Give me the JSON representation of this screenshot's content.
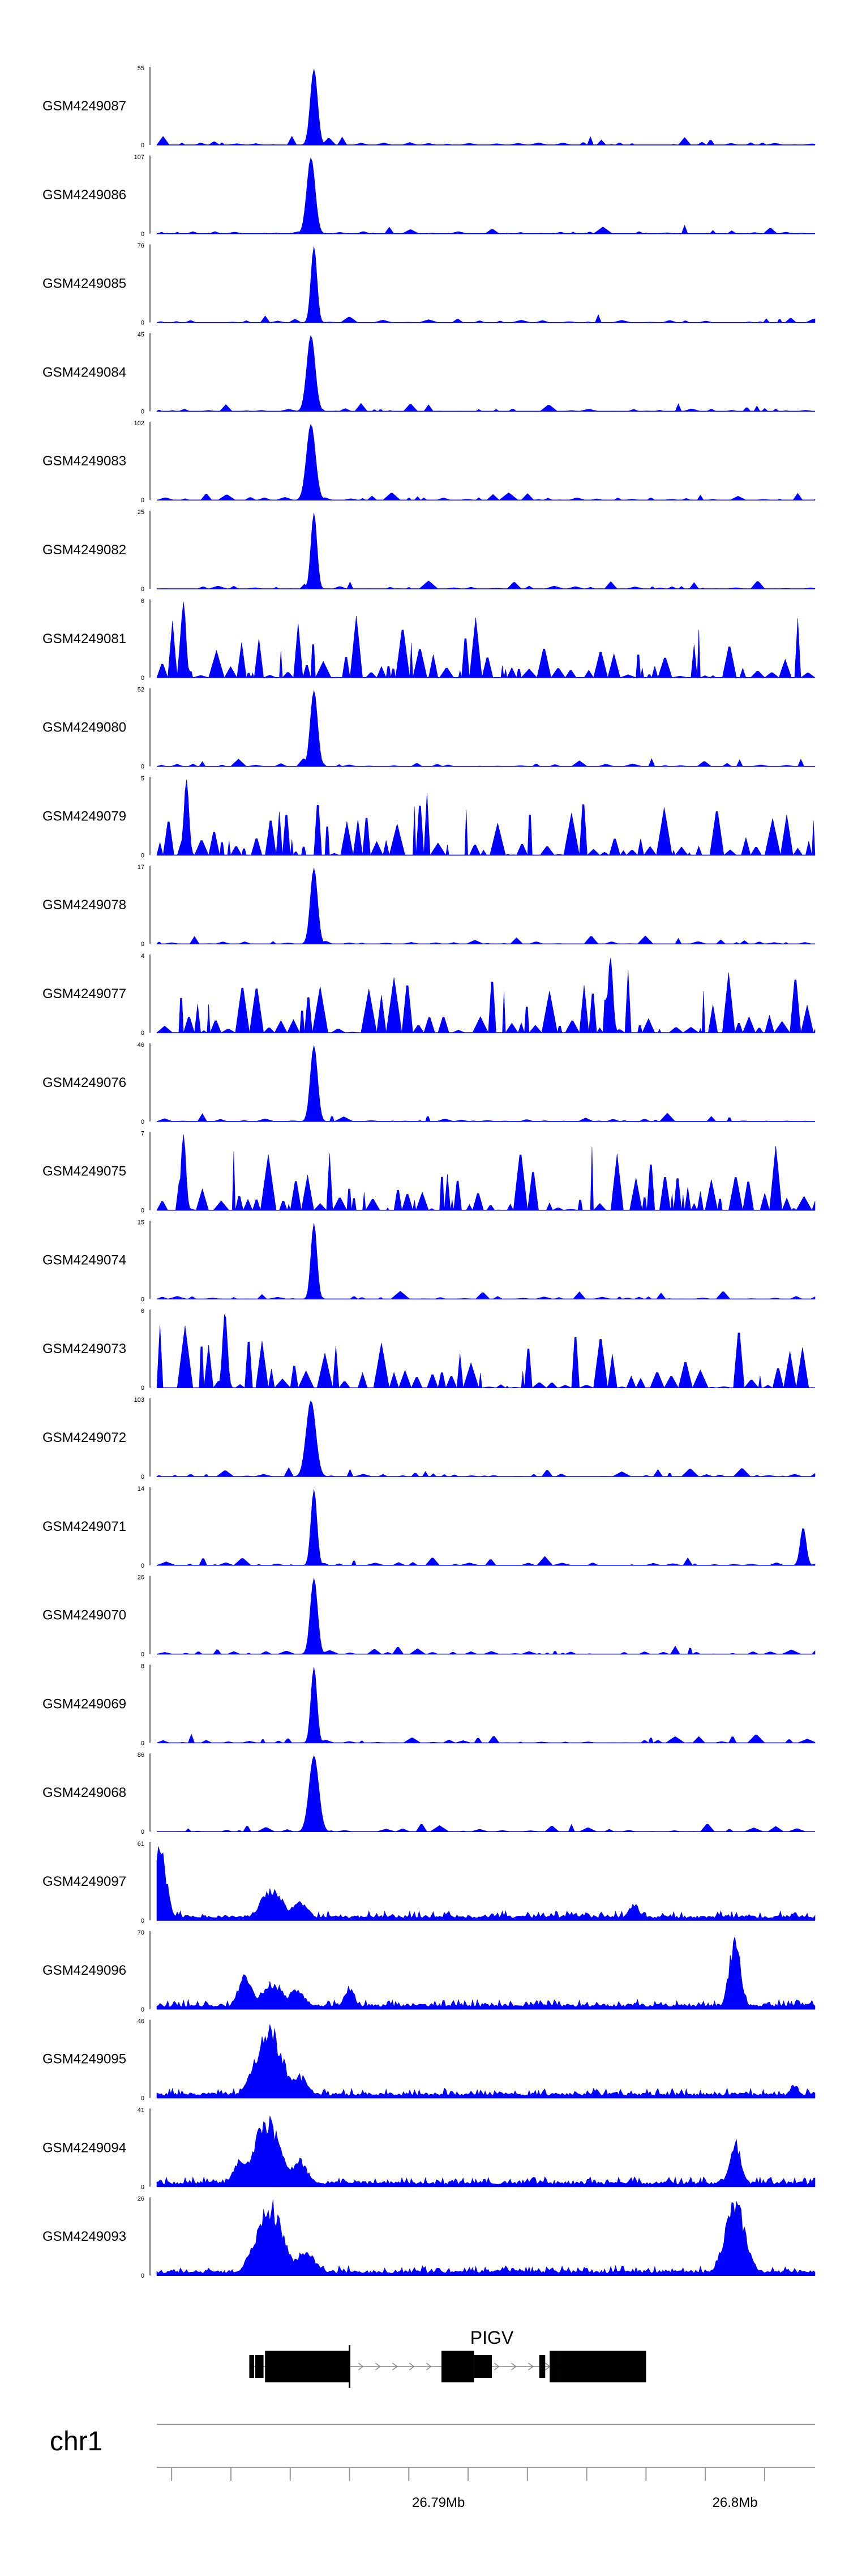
{
  "colors": {
    "signal": "#0000ff",
    "axis": "#000000",
    "gene": "#000000",
    "scaffold": "#999999"
  },
  "chart_data": {
    "type": "area",
    "title": "",
    "xlabel": "",
    "ylabel": "",
    "x_range": [
      26.7805,
      26.8027
    ],
    "x_unit": "Mb",
    "tracks": [
      {
        "name": "GSM4249087",
        "ymax": "55",
        "ymax_value": 55,
        "kind": "sharp",
        "seed": 1,
        "peaks": [
          {
            "pos": 26.7858,
            "height": 1.0,
            "width": 0.00012
          }
        ]
      },
      {
        "name": "GSM4249086",
        "ymax": "107",
        "ymax_value": 107,
        "kind": "sharp",
        "seed": 2,
        "peaks": [
          {
            "pos": 26.7857,
            "height": 1.0,
            "width": 0.00014
          }
        ]
      },
      {
        "name": "GSM4249085",
        "ymax": "76",
        "ymax_value": 76,
        "kind": "sharp",
        "seed": 3,
        "peaks": [
          {
            "pos": 26.7858,
            "height": 1.0,
            "width": 0.0001
          }
        ]
      },
      {
        "name": "GSM4249084",
        "ymax": "45",
        "ymax_value": 45,
        "kind": "sharp",
        "seed": 4,
        "peaks": [
          {
            "pos": 26.7857,
            "height": 1.0,
            "width": 0.00014
          }
        ]
      },
      {
        "name": "GSM4249083",
        "ymax": "102",
        "ymax_value": 102,
        "kind": "sharp",
        "seed": 5,
        "peaks": [
          {
            "pos": 26.7857,
            "height": 1.0,
            "width": 0.00015
          }
        ]
      },
      {
        "name": "GSM4249082",
        "ymax": "25",
        "ymax_value": 25,
        "kind": "sharp",
        "seed": 6,
        "peaks": [
          {
            "pos": 26.7858,
            "height": 1.0,
            "width": 0.0001
          }
        ]
      },
      {
        "name": "GSM4249081",
        "ymax": "6",
        "ymax_value": 6,
        "kind": "noise",
        "seed": 7,
        "peaks": [
          {
            "pos": 26.7814,
            "height": 1.0,
            "width": 8e-05
          }
        ]
      },
      {
        "name": "GSM4249080",
        "ymax": "52",
        "ymax_value": 52,
        "kind": "sharp",
        "seed": 8,
        "peaks": [
          {
            "pos": 26.7858,
            "height": 1.0,
            "width": 0.00012
          }
        ]
      },
      {
        "name": "GSM4249079",
        "ymax": "5",
        "ymax_value": 5,
        "kind": "noise",
        "seed": 9,
        "peaks": [
          {
            "pos": 26.7815,
            "height": 1.0,
            "width": 8e-05
          }
        ]
      },
      {
        "name": "GSM4249078",
        "ymax": "17",
        "ymax_value": 17,
        "kind": "sharp",
        "seed": 10,
        "peaks": [
          {
            "pos": 26.7858,
            "height": 1.0,
            "width": 0.00012
          }
        ]
      },
      {
        "name": "GSM4249077",
        "ymax": "4",
        "ymax_value": 4,
        "kind": "noise",
        "seed": 11,
        "peaks": [
          {
            "pos": 26.7958,
            "height": 1.0,
            "width": 8e-05
          }
        ]
      },
      {
        "name": "GSM4249076",
        "ymax": "46",
        "ymax_value": 46,
        "kind": "sharp",
        "seed": 12,
        "peaks": [
          {
            "pos": 26.7858,
            "height": 1.0,
            "width": 0.00012
          }
        ]
      },
      {
        "name": "GSM4249075",
        "ymax": "7",
        "ymax_value": 7,
        "kind": "noise",
        "seed": 13,
        "peaks": [
          {
            "pos": 26.7814,
            "height": 1.0,
            "width": 8e-05
          }
        ]
      },
      {
        "name": "GSM4249074",
        "ymax": "15",
        "ymax_value": 15,
        "kind": "sharp",
        "seed": 14,
        "peaks": [
          {
            "pos": 26.7858,
            "height": 1.0,
            "width": 0.0001
          }
        ]
      },
      {
        "name": "GSM4249073",
        "ymax": "6",
        "ymax_value": 6,
        "kind": "noise",
        "seed": 15,
        "peaks": [
          {
            "pos": 26.7828,
            "height": 1.0,
            "width": 8e-05
          }
        ]
      },
      {
        "name": "GSM4249072",
        "ymax": "103",
        "ymax_value": 103,
        "kind": "sharp",
        "seed": 16,
        "peaks": [
          {
            "pos": 26.7857,
            "height": 1.0,
            "width": 0.00016
          }
        ]
      },
      {
        "name": "GSM4249071",
        "ymax": "14",
        "ymax_value": 14,
        "kind": "sharp",
        "seed": 17,
        "peaks": [
          {
            "pos": 26.7858,
            "height": 1.0,
            "width": 0.0001
          },
          {
            "pos": 26.8023,
            "height": 0.5,
            "width": 0.0001
          }
        ]
      },
      {
        "name": "GSM4249070",
        "ymax": "26",
        "ymax_value": 26,
        "kind": "sharp",
        "seed": 18,
        "peaks": [
          {
            "pos": 26.7858,
            "height": 1.0,
            "width": 0.00012
          }
        ]
      },
      {
        "name": "GSM4249069",
        "ymax": "8",
        "ymax_value": 8,
        "kind": "sharp",
        "seed": 19,
        "peaks": [
          {
            "pos": 26.7858,
            "height": 1.0,
            "width": 0.0001
          }
        ]
      },
      {
        "name": "GSM4249068",
        "ymax": "86",
        "ymax_value": 86,
        "kind": "sharp",
        "seed": 20,
        "peaks": [
          {
            "pos": 26.7858,
            "height": 1.0,
            "width": 0.00016
          }
        ]
      },
      {
        "name": "GSM4249097",
        "ymax": "61",
        "ymax_value": 61,
        "kind": "broad",
        "seed": 21,
        "peaks": [
          {
            "pos": 26.7806,
            "height": 0.95,
            "width": 0.00022
          },
          {
            "pos": 26.7844,
            "height": 0.4,
            "width": 0.0004
          },
          {
            "pos": 26.7853,
            "height": 0.25,
            "width": 0.0003
          },
          {
            "pos": 26.7966,
            "height": 0.22,
            "width": 0.00018
          },
          {
            "pos": 26.802,
            "height": 0.12,
            "width": 0.0001
          }
        ]
      },
      {
        "name": "GSM4249096",
        "ymax": "70",
        "ymax_value": 70,
        "kind": "broad",
        "seed": 22,
        "peaks": [
          {
            "pos": 26.7835,
            "height": 0.45,
            "width": 0.00025
          },
          {
            "pos": 26.7844,
            "height": 0.35,
            "width": 0.0004
          },
          {
            "pos": 26.7852,
            "height": 0.25,
            "width": 0.0003
          },
          {
            "pos": 26.787,
            "height": 0.3,
            "width": 0.00018
          },
          {
            "pos": 26.8,
            "height": 0.9,
            "width": 0.0002
          }
        ]
      },
      {
        "name": "GSM4249095",
        "ymax": "46",
        "ymax_value": 46,
        "kind": "broad",
        "seed": 23,
        "peaks": [
          {
            "pos": 26.7843,
            "height": 0.9,
            "width": 0.00045
          },
          {
            "pos": 26.7853,
            "height": 0.3,
            "width": 0.0003
          },
          {
            "pos": 26.802,
            "height": 0.18,
            "width": 0.00015
          }
        ]
      },
      {
        "name": "GSM4249094",
        "ymax": "41",
        "ymax_value": 41,
        "kind": "broad",
        "seed": 24,
        "peaks": [
          {
            "pos": 26.7833,
            "height": 0.35,
            "width": 0.00025
          },
          {
            "pos": 26.7842,
            "height": 0.9,
            "width": 0.00045
          },
          {
            "pos": 26.7853,
            "height": 0.35,
            "width": 0.0003
          },
          {
            "pos": 26.8,
            "height": 0.6,
            "width": 0.0002
          },
          {
            "pos": 26.8027,
            "height": 0.15,
            "width": 8e-05
          }
        ]
      },
      {
        "name": "GSM4249093",
        "ymax": "26",
        "ymax_value": 26,
        "kind": "broad",
        "seed": 25,
        "peaks": [
          {
            "pos": 26.7843,
            "height": 0.95,
            "width": 0.00045
          },
          {
            "pos": 26.7855,
            "height": 0.3,
            "width": 0.0004
          },
          {
            "pos": 26.8,
            "height": 0.95,
            "width": 0.00035
          }
        ]
      }
    ],
    "gene": {
      "name": "PIGV",
      "exons": [
        {
          "start": 26.78362,
          "end": 26.78378,
          "thick": false
        },
        {
          "start": 26.78382,
          "end": 26.7841,
          "thick": false
        },
        {
          "start": 26.78415,
          "end": 26.787,
          "thick": true
        },
        {
          "start": 26.7901,
          "end": 26.7912,
          "thick": true
        },
        {
          "start": 26.7912,
          "end": 26.7918,
          "thick": false
        },
        {
          "start": 26.7934,
          "end": 26.7936,
          "thick": false
        },
        {
          "start": 26.79375,
          "end": 26.7941,
          "thick": true
        },
        {
          "start": 26.7941,
          "end": 26.797,
          "thick": true
        }
      ],
      "intron_range": [
        26.78362,
        26.797
      ],
      "tss": 26.787
    },
    "chromosome": "chr1",
    "ticks": [
      {
        "pos": 26.79,
        "label": "26.79Mb"
      },
      {
        "pos": 26.8,
        "label": "26.8Mb"
      }
    ]
  }
}
